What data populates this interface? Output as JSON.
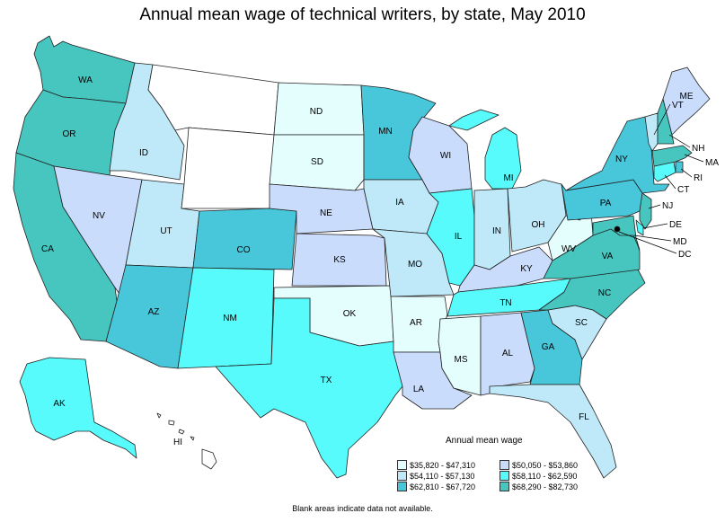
{
  "title": "Annual mean wage of technical writers, by state, May 2010",
  "legend": {
    "title": "Annual mean wage",
    "items": [
      {
        "label": "$35,820 - $47,310",
        "color": "#e4fdfd"
      },
      {
        "label": "$50,050 - $53,860",
        "color": "#c9dcfb"
      },
      {
        "label": "$54,110 - $57,130",
        "color": "#bfe9f9"
      },
      {
        "label": "$58,110 - $62,590",
        "color": "#58fbfb"
      },
      {
        "label": "$62,810 - $67,720",
        "color": "#48c6da"
      },
      {
        "label": "$68,290 - $82,730",
        "color": "#47c6c0"
      }
    ]
  },
  "footnote": "Blank areas indicate data not available.",
  "states": {
    "WA": {
      "abbr": "WA",
      "color": "#47c6c0"
    },
    "OR": {
      "abbr": "OR",
      "color": "#47c6c0"
    },
    "CA": {
      "abbr": "CA",
      "color": "#47c6c0"
    },
    "ID": {
      "abbr": "ID",
      "color": "#bfe9f9"
    },
    "NV": {
      "abbr": "NV",
      "color": "#c9dcfb"
    },
    "UT": {
      "abbr": "UT",
      "color": "#bfe9f9"
    },
    "AZ": {
      "abbr": "AZ",
      "color": "#48c6da"
    },
    "MT": {
      "abbr": "",
      "color": "#ffffff"
    },
    "WY": {
      "abbr": "",
      "color": "#ffffff"
    },
    "CO": {
      "abbr": "CO",
      "color": "#48c6da"
    },
    "NM": {
      "abbr": "NM",
      "color": "#58fbfb"
    },
    "ND": {
      "abbr": "ND",
      "color": "#e4fdfd"
    },
    "SD": {
      "abbr": "SD",
      "color": "#e4fdfd"
    },
    "NE": {
      "abbr": "NE",
      "color": "#c9dcfb"
    },
    "KS": {
      "abbr": "KS",
      "color": "#c9dcfb"
    },
    "OK": {
      "abbr": "OK",
      "color": "#e4fdfd"
    },
    "TX": {
      "abbr": "TX",
      "color": "#58fbfb"
    },
    "MN": {
      "abbr": "MN",
      "color": "#48c6da"
    },
    "IA": {
      "abbr": "IA",
      "color": "#bfe9f9"
    },
    "MO": {
      "abbr": "MO",
      "color": "#bfe9f9"
    },
    "AR": {
      "abbr": "AR",
      "color": "#e4fdfd"
    },
    "LA": {
      "abbr": "LA",
      "color": "#c9dcfb"
    },
    "WI": {
      "abbr": "WI",
      "color": "#c9dcfb"
    },
    "IL": {
      "abbr": "IL",
      "color": "#58fbfb"
    },
    "MI": {
      "abbr": "MI",
      "color": "#58fbfb"
    },
    "IN": {
      "abbr": "IN",
      "color": "#bfe9f9"
    },
    "OH": {
      "abbr": "OH",
      "color": "#bfe9f9"
    },
    "KY": {
      "abbr": "KY",
      "color": "#c9dcfb"
    },
    "TN": {
      "abbr": "TN",
      "color": "#58fbfb"
    },
    "MS": {
      "abbr": "MS",
      "color": "#e4fdfd"
    },
    "AL": {
      "abbr": "AL",
      "color": "#c9dcfb"
    },
    "GA": {
      "abbr": "GA",
      "color": "#48c6da"
    },
    "FL": {
      "abbr": "FL",
      "color": "#bfe9f9"
    },
    "SC": {
      "abbr": "SC",
      "color": "#bfe9f9"
    },
    "NC": {
      "abbr": "NC",
      "color": "#47c6c0"
    },
    "VA": {
      "abbr": "VA",
      "color": "#47c6c0"
    },
    "WV": {
      "abbr": "WV",
      "color": "#e4fdfd"
    },
    "PA": {
      "abbr": "PA",
      "color": "#48c6da"
    },
    "NY": {
      "abbr": "NY",
      "color": "#48c6da"
    },
    "NJ": {
      "abbr": "NJ",
      "color": "#47c6c0"
    },
    "DE": {
      "abbr": "DE",
      "color": "#58fbfb"
    },
    "MD": {
      "abbr": "MD",
      "color": "#47c6c0"
    },
    "DC": {
      "abbr": "DC",
      "color": "#000000"
    },
    "CT": {
      "abbr": "CT",
      "color": "#58fbfb"
    },
    "RI": {
      "abbr": "RI",
      "color": "#48c6da"
    },
    "MA": {
      "abbr": "MA",
      "color": "#47c6c0"
    },
    "VT": {
      "abbr": "VT",
      "color": "#bfe9f9"
    },
    "NH": {
      "abbr": "NH",
      "color": "#47c6c0"
    },
    "ME": {
      "abbr": "ME",
      "color": "#c9dcfb"
    },
    "AK": {
      "abbr": "AK",
      "color": "#58fbfb"
    },
    "HI": {
      "abbr": "HI",
      "color": "#ffffff"
    }
  }
}
